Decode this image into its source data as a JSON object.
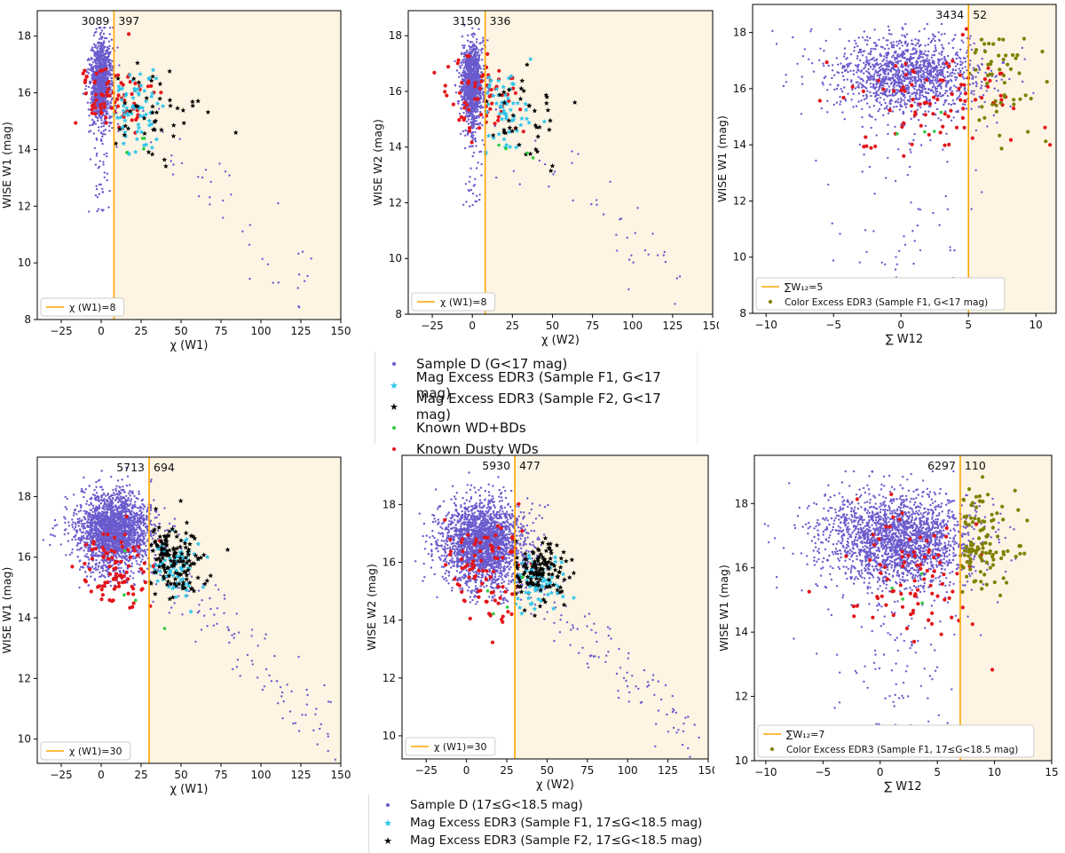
{
  "colors": {
    "sample": "#6A5ACD",
    "f1": "#2BC4EA",
    "f2": "#000000",
    "wdbd": "#2ECC40",
    "dusty": "#E3151A",
    "olive": "#808000",
    "shade": "#FDF4E3",
    "cut": "#FFA500"
  },
  "legend_top": {
    "items": [
      {
        "label": "Sample D (G<17 mag)",
        "marker": "dot",
        "color": "#6A5ACD"
      },
      {
        "label": "Mag Excess EDR3 (Sample F1, G<17 mag)",
        "marker": "star",
        "color": "#2BC4EA"
      },
      {
        "label": "Mag Excess EDR3 (Sample F2, G<17 mag)",
        "marker": "star",
        "color": "#000000"
      },
      {
        "label": "Known WD+BDs",
        "marker": "dot",
        "color": "#2ECC40"
      },
      {
        "label": "Known Dusty WDs",
        "marker": "dot",
        "color": "#E3151A"
      }
    ]
  },
  "legend_bottom": {
    "items": [
      {
        "label": "Sample D (17≤G<18.5 mag)",
        "marker": "dot",
        "color": "#6A5ACD"
      },
      {
        "label": "Mag Excess EDR3 (Sample F1, 17≤G<18.5 mag)",
        "marker": "star",
        "color": "#2BC4EA"
      },
      {
        "label": "Mag Excess EDR3 (Sample F2, 17≤G<18.5 mag)",
        "marker": "star",
        "color": "#000000"
      }
    ]
  },
  "chart_data": [
    {
      "id": "p1",
      "type": "scatter",
      "xlabel": "χ (W1)",
      "ylabel": "WISE W1 (mag)",
      "xlim": [
        -40,
        150
      ],
      "ylim": [
        8,
        18.9
      ],
      "xticks": [
        -25,
        0,
        25,
        50,
        75,
        100,
        125,
        150
      ],
      "yticks": [
        8,
        10,
        12,
        14,
        16,
        18
      ],
      "cut": 8,
      "cut_label": "χ (W1)=8",
      "count_left": "3089",
      "count_right": "397",
      "cloud": {
        "n": 1200,
        "xc": 0,
        "xs": 2.5,
        "yc": 16.4,
        "ys": 0.7,
        "yrange": [
          11.8,
          18.3
        ]
      },
      "tail": {
        "n": 45,
        "x0": 5,
        "x1": 130,
        "y0": 16.0,
        "y1": 9.0,
        "spread": 0.7
      },
      "groups": [
        {
          "key": "dusty",
          "shape": "dot",
          "n": 80,
          "xc": 8,
          "xs": 12,
          "yc": 15.8,
          "ys": 0.6
        },
        {
          "key": "f1",
          "shape": "star",
          "n": 70,
          "xc": 20,
          "xs": 8,
          "yc": 15.4,
          "ys": 0.8
        },
        {
          "key": "f2",
          "shape": "star",
          "n": 45,
          "xc": 35,
          "xs": 15,
          "yc": 15.3,
          "ys": 1.0
        },
        {
          "key": "wdbd",
          "shape": "dot",
          "n": 4,
          "xc": 20,
          "xs": 8,
          "yc": 14.0,
          "ys": 0.3
        }
      ]
    },
    {
      "id": "p2",
      "type": "scatter",
      "xlabel": "χ (W2)",
      "ylabel": "WISE W2 (mag)",
      "xlim": [
        -40,
        150
      ],
      "ylim": [
        8,
        18.9
      ],
      "xticks": [
        -25,
        0,
        25,
        50,
        75,
        100,
        125,
        150
      ],
      "yticks": [
        8,
        10,
        12,
        14,
        16,
        18
      ],
      "cut": 8,
      "cut_label": "χ (W1)=8",
      "count_left": "3150",
      "count_right": "336",
      "cloud": {
        "n": 1200,
        "xc": 0,
        "xs": 2.5,
        "yc": 16.3,
        "ys": 0.7,
        "yrange": [
          11.8,
          18.4
        ]
      },
      "tail": {
        "n": 45,
        "x0": 5,
        "x1": 130,
        "y0": 15.8,
        "y1": 9.0,
        "spread": 0.7
      },
      "groups": [
        {
          "key": "dusty",
          "shape": "dot",
          "n": 70,
          "xc": 8,
          "xs": 12,
          "yc": 15.8,
          "ys": 0.7
        },
        {
          "key": "f1",
          "shape": "star",
          "n": 60,
          "xc": 22,
          "xs": 8,
          "yc": 15.3,
          "ys": 0.8
        },
        {
          "key": "f2",
          "shape": "star",
          "n": 40,
          "xc": 35,
          "xs": 15,
          "yc": 15.1,
          "ys": 1.0
        },
        {
          "key": "wdbd",
          "shape": "dot",
          "n": 4,
          "xc": 25,
          "xs": 8,
          "yc": 14.0,
          "ys": 0.3
        }
      ]
    },
    {
      "id": "p3",
      "type": "scatter",
      "xlabel": "∑ W12",
      "ylabel": "WISE W1 (mag)",
      "xlim": [
        -11,
        11.5
      ],
      "ylim": [
        8,
        19.0
      ],
      "xticks": [
        -10,
        -5,
        0,
        5,
        10
      ],
      "yticks": [
        8,
        10,
        12,
        14,
        16,
        18
      ],
      "cut": 5,
      "cut_label": "∑W₁₂=5",
      "count_left": "3434",
      "count_right": "52",
      "extra_label": "Color Excess EDR3 (Sample F1, G<17 mag)",
      "cloud": {
        "n": 1400,
        "xc": 0.5,
        "xs": 2.2,
        "yc": 16.5,
        "ys": 0.65,
        "yrange": [
          9,
          18.3
        ]
      },
      "groups": [
        {
          "key": "dusty",
          "shape": "dot",
          "n": 90,
          "xc": 3,
          "xs": 3,
          "yc": 15.5,
          "ys": 1.0
        },
        {
          "key": "olive",
          "shape": "dot",
          "n": 52,
          "xc": 7,
          "xs": 1.5,
          "yc": 16.2,
          "ys": 1.0
        },
        {
          "key": "wdbd",
          "shape": "dot",
          "n": 4,
          "xc": 1.5,
          "xs": 0.8,
          "yc": 14.5,
          "ys": 0.8
        }
      ]
    },
    {
      "id": "p4",
      "type": "scatter",
      "xlabel": "χ (W1)",
      "ylabel": "WISE W1 (mag)",
      "xlim": [
        -40,
        150
      ],
      "ylim": [
        9.2,
        19.3
      ],
      "xticks": [
        -25,
        0,
        25,
        50,
        75,
        100,
        125,
        150
      ],
      "yticks": [
        10,
        12,
        14,
        16,
        18
      ],
      "cut": 30,
      "cut_label": "χ (W1)=30",
      "count_left": "5713",
      "count_right": "694",
      "cloud": {
        "n": 2200,
        "xc": 8,
        "xs": 9,
        "yc": 16.9,
        "ys": 0.6,
        "yrange": [
          15.0,
          19.0
        ]
      },
      "tail": {
        "n": 110,
        "x0": 30,
        "x1": 145,
        "y0": 16.0,
        "y1": 10.0,
        "spread": 0.6
      },
      "groups": [
        {
          "key": "dusty",
          "shape": "dot",
          "n": 90,
          "xc": 12,
          "xs": 12,
          "yc": 15.5,
          "ys": 0.8
        },
        {
          "key": "f1",
          "shape": "star",
          "n": 80,
          "xc": 45,
          "xs": 8,
          "yc": 15.7,
          "ys": 0.5
        },
        {
          "key": "f2",
          "shape": "star",
          "n": 140,
          "xc": 45,
          "xs": 10,
          "yc": 15.9,
          "ys": 0.6
        },
        {
          "key": "wdbd",
          "shape": "dot",
          "n": 4,
          "xc": 20,
          "xs": 8,
          "yc": 14.5,
          "ys": 0.6
        }
      ]
    },
    {
      "id": "p5",
      "type": "scatter",
      "xlabel": "χ (W2)",
      "ylabel": "WISE W2 (mag)",
      "xlim": [
        -40,
        150
      ],
      "ylim": [
        9.2,
        19.7
      ],
      "xticks": [
        -25,
        0,
        25,
        50,
        75,
        100,
        125,
        150
      ],
      "yticks": [
        10,
        12,
        14,
        16,
        18
      ],
      "cut": 30,
      "cut_label": "χ (W1)=30",
      "count_left": "5930",
      "count_right": "477",
      "cloud": {
        "n": 2200,
        "xc": 10,
        "xs": 10,
        "yc": 16.7,
        "ys": 0.7,
        "yrange": [
          14.5,
          19.1
        ]
      },
      "tail": {
        "n": 110,
        "x0": 30,
        "x1": 140,
        "y0": 15.5,
        "y1": 10.0,
        "spread": 0.6
      },
      "groups": [
        {
          "key": "dusty",
          "shape": "dot",
          "n": 90,
          "xc": 12,
          "xs": 14,
          "yc": 15.5,
          "ys": 1.0
        },
        {
          "key": "f1",
          "shape": "star",
          "n": 70,
          "xc": 45,
          "xs": 10,
          "yc": 15.3,
          "ys": 0.5
        },
        {
          "key": "f2",
          "shape": "star",
          "n": 130,
          "xc": 45,
          "xs": 10,
          "yc": 15.7,
          "ys": 0.5
        },
        {
          "key": "wdbd",
          "shape": "dot",
          "n": 4,
          "xc": 25,
          "xs": 8,
          "yc": 14.5,
          "ys": 0.5
        }
      ]
    },
    {
      "id": "p6",
      "type": "scatter",
      "xlabel": "∑ W12",
      "ylabel": "WISE W1 (mag)",
      "xlim": [
        -11,
        15
      ],
      "ylim": [
        10,
        19.5
      ],
      "xticks": [
        -10,
        -5,
        0,
        5,
        10,
        15
      ],
      "yticks": [
        10,
        12,
        14,
        16,
        18
      ],
      "cut": 7,
      "cut_label": "∑W₁₂=7",
      "count_left": "6297",
      "count_right": "110",
      "extra_label": "Color Excess EDR3 (Sample F1, 17≤G<18.5 mag)",
      "cloud": {
        "n": 2200,
        "xc": 1.5,
        "xs": 2.5,
        "yc": 16.9,
        "ys": 0.7,
        "yrange": [
          10.5,
          19.0
        ]
      },
      "groups": [
        {
          "key": "dusty",
          "shape": "dot",
          "n": 90,
          "xc": 3,
          "xs": 3,
          "yc": 15.8,
          "ys": 1.0
        },
        {
          "key": "olive",
          "shape": "dot",
          "n": 110,
          "xc": 9,
          "xs": 1.5,
          "yc": 16.8,
          "ys": 0.9
        },
        {
          "key": "wdbd",
          "shape": "dot",
          "n": 4,
          "xc": 2,
          "xs": 0.8,
          "yc": 14.8,
          "ys": 0.8
        }
      ]
    }
  ]
}
